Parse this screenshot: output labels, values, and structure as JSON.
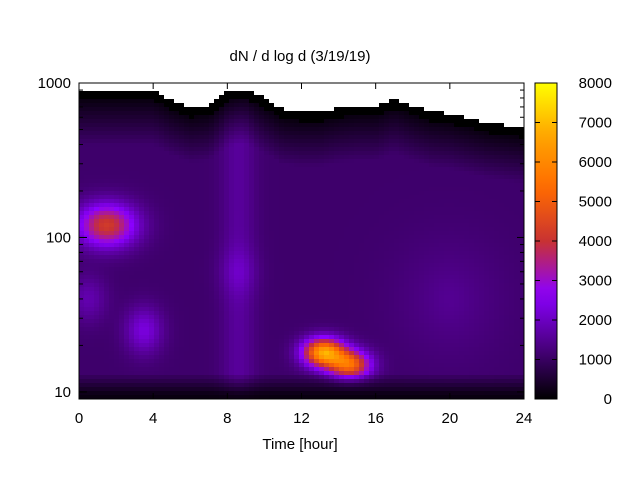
{
  "chart_data": {
    "type": "heatmap",
    "title": "dN / d log d (3/19/19)",
    "xlabel": "Time [hour]",
    "ylabel": "",
    "xlim": [
      0,
      24
    ],
    "ylim": [
      9,
      1000
    ],
    "y_scale": "log",
    "x_ticks": [
      0,
      4,
      8,
      12,
      16,
      20,
      24
    ],
    "y_ticks": [
      10,
      100,
      1000
    ],
    "colorbar": {
      "min": 0,
      "max": 8000,
      "ticks": [
        0,
        1000,
        2000,
        3000,
        4000,
        5000,
        6000,
        7000,
        8000
      ],
      "colormap": "gnuplot",
      "colors": [
        "#000000",
        "#4b0082",
        "#8b00ff",
        "#c83232",
        "#ff6a00",
        "#ffa500",
        "#ffff00"
      ]
    },
    "upper_diameter_limit": {
      "hours": [
        0,
        1,
        2,
        3,
        4,
        5,
        6,
        7,
        8,
        9,
        10,
        11,
        12,
        13,
        14,
        15,
        16,
        17,
        18,
        19,
        20,
        21,
        22,
        23,
        24
      ],
      "diameter": [
        880,
        880,
        880,
        880,
        880,
        760,
        680,
        700,
        860,
        900,
        780,
        660,
        640,
        640,
        680,
        700,
        700,
        780,
        700,
        640,
        620,
        580,
        540,
        520,
        500
      ]
    },
    "features": [
      {
        "hour": 1.5,
        "diameter": 120,
        "value": 4200
      },
      {
        "hour": 13.2,
        "diameter": 18,
        "value": 6500
      },
      {
        "hour": 14.6,
        "diameter": 15,
        "value": 5200
      },
      {
        "hour": 3.5,
        "diameter": 25,
        "value": 2300
      },
      {
        "hour": 8.6,
        "diameter": 60,
        "value": 1600
      },
      {
        "hour": 0.5,
        "diameter": 40,
        "value": 1800
      },
      {
        "hour": 20.0,
        "diameter": 40,
        "value": 1200
      }
    ]
  }
}
